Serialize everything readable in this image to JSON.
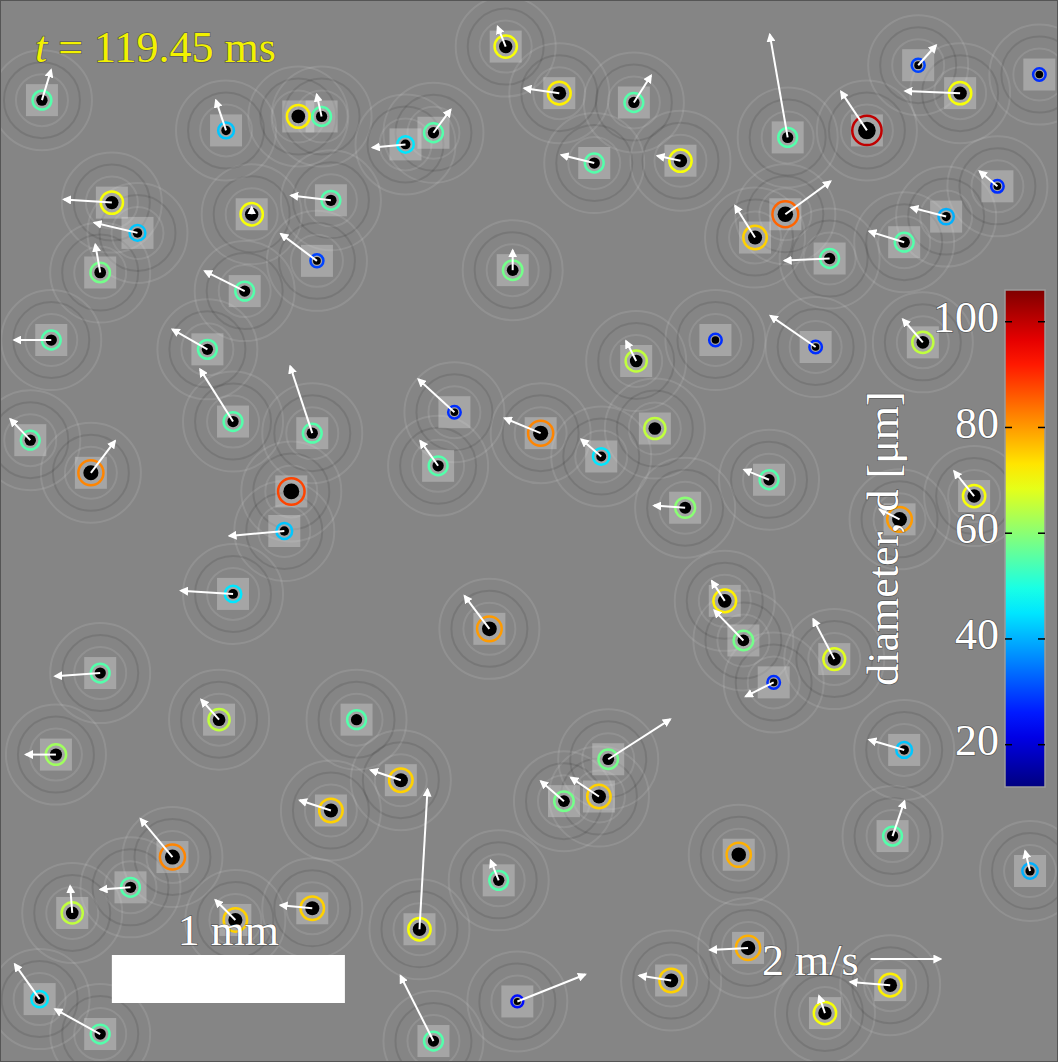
{
  "chart_data": {
    "type": "scatter",
    "title": "t = 119.45 ms",
    "tick_labels": false,
    "xlim": [
      0,
      4.54
    ],
    "ylim": [
      0,
      4.56
    ],
    "x": [
      0.18,
      0.48,
      1.08,
      1.28,
      1.38,
      0.97,
      2.17,
      2.4,
      2.72,
      3.72,
      3.38,
      4.12,
      3.94,
      2.92,
      3.37,
      3.24,
      2.32,
      0.39,
      1.25,
      2.1,
      3.86,
      0.74,
      3.17,
      1.8,
      2.88,
      3.21,
      3.82,
      3.54,
      2.57,
      1.72,
      1.42,
      1.34,
      1.01,
      0.31,
      3.58,
      3.11,
      3.96,
      4.18,
      2.73,
      2.81,
      0.43,
      0.22,
      1.0,
      1.34,
      1.88,
      2.2,
      2.58,
      2.94,
      3.19,
      3.83,
      2.42,
      2.14,
      0.56,
      0.43,
      1.86,
      0.17,
      2.22,
      2.61,
      1.22,
      0.94,
      1.0,
      0.43,
      0.24,
      1.95,
      3.07,
      3.5,
      2.55,
      1.86,
      1.74,
      1.42,
      1.36,
      0.89,
      4.28,
      4.06,
      3.88,
      4.42,
      3.88,
      3.32,
      1.53,
      3.3,
      0.13,
      0.59,
      3.56,
      4.46,
      1.05
    ],
    "values": [
      4.13,
      3.69,
      3.64,
      4.06,
      4.06,
      4.0,
      4.36,
      4.16,
      4.12,
      4.0,
      3.97,
      4.16,
      4.28,
      3.87,
      3.64,
      3.54,
      2.7,
      2.53,
      2.45,
      1.86,
      2.33,
      0.88,
      0.89,
      0.57,
      0.35,
      0.49,
      0.33,
      0.21,
      1.14,
      1.21,
      1.08,
      0.66,
      0.61,
      0.64,
      1.73,
      1.98,
      3.09,
      2.43,
      3.01,
      2.72,
      3.39,
      3.1,
      2.75,
      2.7,
      2.56,
      3.4,
      2.6,
      2.38,
      1.81,
      0.97,
      1.12,
      0.78,
      0.75,
      0.12,
      0.09,
      0.27,
      0.26,
      1.3,
      2.28,
      1.47,
      2.01,
      1.67,
      1.32,
      2.79,
      3.1,
      3.07,
      3.86,
      3.99,
      3.94,
      3.7,
      3.44,
      3.06,
      3.76,
      3.63,
      3.52,
      0.82,
      1.34,
      1.63,
      1.47,
      2.5,
      2.67,
      3.56,
      3.45,
      4.24,
      3.31
    ],
    "diameter": [
      55,
      70,
      70,
      72,
      55,
      42,
      70,
      72,
      55,
      100,
      55,
      70,
      30,
      70,
      85,
      75,
      82,
      82,
      88,
      80,
      80,
      82,
      78,
      70,
      75,
      78,
      72,
      70,
      75,
      75,
      75,
      75,
      75,
      65,
      68,
      72,
      65,
      70,
      65,
      65,
      58,
      55,
      55,
      55,
      55,
      58,
      45,
      60,
      58,
      55,
      58,
      55,
      55,
      55,
      55,
      45,
      25,
      58,
      42,
      65,
      45,
      55,
      62,
      28,
      28,
      28,
      55,
      55,
      45,
      55,
      30,
      55,
      28,
      40,
      55,
      40,
      42,
      28,
      55,
      55,
      55,
      42,
      55,
      28,
      55
    ],
    "u": [
      0.26,
      -1.37,
      0,
      0,
      -0.14,
      -0.29,
      -0.23,
      -1,
      0.49,
      -0.74,
      -0.51,
      -1.57,
      0.51,
      -0.66,
      1.29,
      -0.57,
      -1.03,
      0.69,
      0,
      -0.71,
      -0.57,
      -0.91,
      0,
      0.23,
      -0.91,
      -1.09,
      -1.14,
      -0.17,
      -0.8,
      -0.86,
      -0.89,
      -0.91,
      -0.57,
      -0.06,
      -0.6,
      -0.37,
      -0.57,
      -0.57,
      -0.29,
      0,
      -0.14,
      -1.06,
      -0.94,
      -0.63,
      -0.51,
      0,
      -0.57,
      -0.89,
      -0.83,
      0.34,
      -0.66,
      -0.23,
      -0.86,
      -1.29,
      -0.94,
      -0.71,
      1.94,
      1.77,
      -1.57,
      -0.51,
      -1.49,
      -1.29,
      -0.86,
      -1.03,
      0,
      -1.29,
      -0.94,
      0.49,
      -0.94,
      -1.14,
      -1.03,
      -1,
      -0.51,
      -1,
      -1,
      -0.14,
      -1,
      -0.8,
      0,
      -0.71,
      -0.57,
      -1.23,
      -1.29,
      0,
      -1.14
    ],
    "v": [
      0.86,
      0.09,
      0.2,
      0,
      0.63,
      0.86,
      0.57,
      0.14,
      0.77,
      1.11,
      2.94,
      0.06,
      0.57,
      0.14,
      0.94,
      0.91,
      0.43,
      0.91,
      0,
      0.94,
      0.29,
      1.09,
      0,
      4.0,
      0.14,
      -0.06,
      0.09,
      0.49,
      0.54,
      0.29,
      0.29,
      0.09,
      0.57,
      0.77,
      1.14,
      0.57,
      0.66,
      0.71,
      0.57,
      0,
      0.8,
      0,
      1.49,
      1.91,
      0.71,
      0.57,
      0.49,
      0.06,
      0.86,
      1,
      0.57,
      0.57,
      -0.06,
      0.71,
      1.86,
      1,
      0.77,
      1.14,
      -0.14,
      0.57,
      0.09,
      -0.09,
      0,
      0.94,
      0,
      0.89,
      0.23,
      0.66,
      -0.09,
      0.14,
      0.77,
      0.57,
      0.43,
      0.26,
      0.31,
      0.57,
      0.29,
      -0.4,
      0,
      0.29,
      0.6,
      0.29,
      -0.06,
      0,
      0.57
    ],
    "colorbar": {
      "label": "diameter, d [μm]",
      "range": [
        12,
        106
      ],
      "ticks": [
        20,
        40,
        60,
        80,
        100
      ]
    },
    "scale_bar": {
      "label": "1 mm",
      "length": 1
    },
    "velocity_key": {
      "label": "2 m/s",
      "value": 2
    }
  }
}
